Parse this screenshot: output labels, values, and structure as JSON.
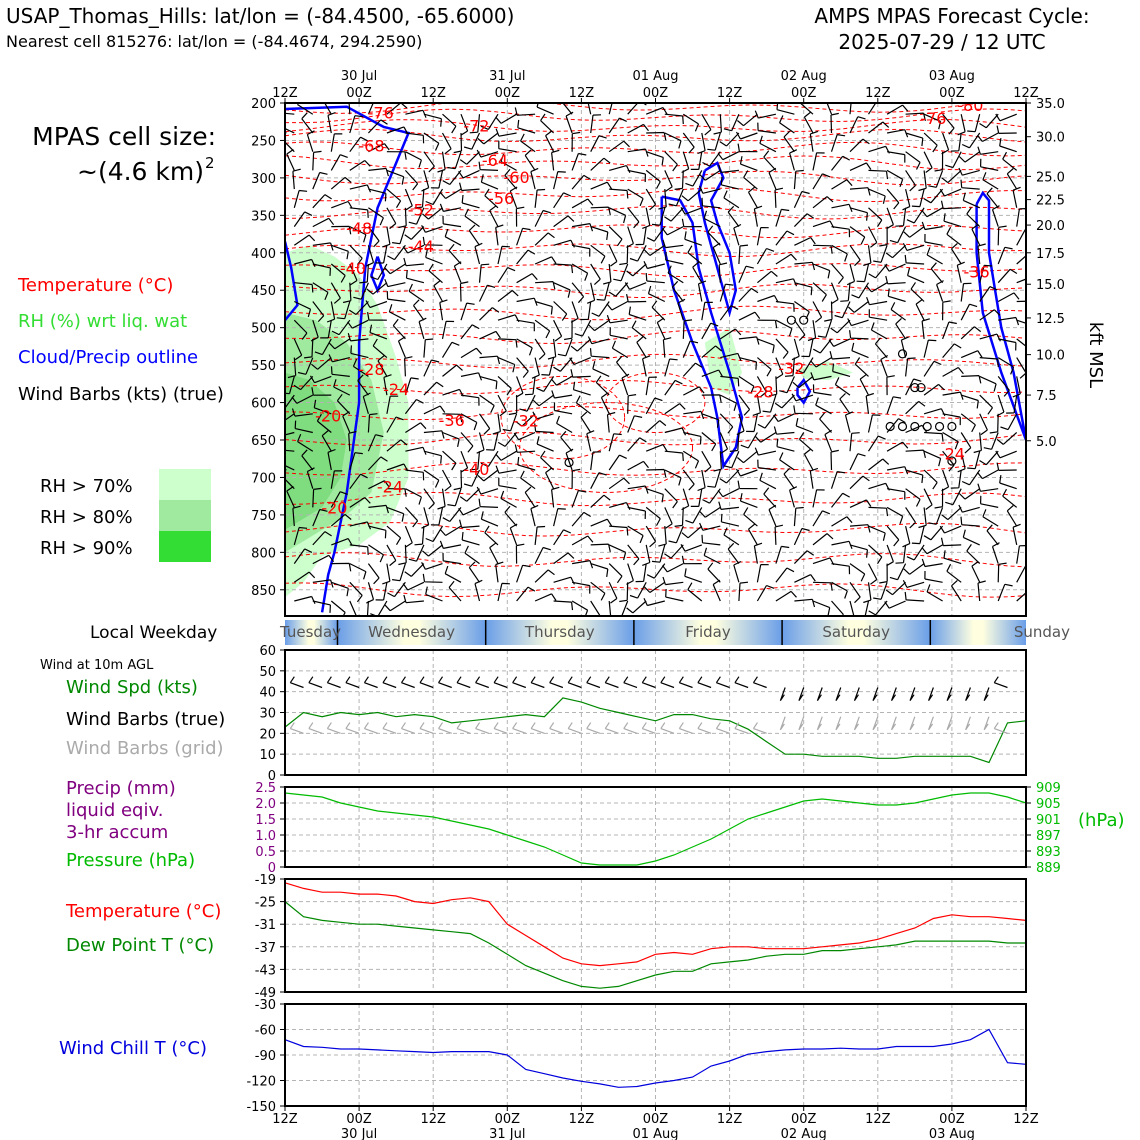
{
  "header": {
    "station": "USAP_Thomas_Hills: lat/lon = (-84.4500, -65.6000)",
    "nearest": "Nearest cell 815276: lat/lon = (-84.4674, 294.2590)",
    "forecast_line1": "AMPS MPAS Forecast Cycle:",
    "forecast_line2": "2025-07-29 / 12 UTC"
  },
  "left_panel": {
    "cell_size_label": "MPAS cell size:",
    "cell_size_value": "~(4.6 km)",
    "cell_size_exp": "2",
    "legend_temperature": "Temperature (°C)",
    "legend_rh": "RH (%) wrt liq. wat",
    "legend_cloud": "Cloud/Precip outline",
    "legend_wind": "Wind Barbs (kts) (true)",
    "rh_levels": [
      {
        "label": "RH > 70%",
        "color": "#ccffcc"
      },
      {
        "label": "RH > 80%",
        "color": "#a0eaa0"
      },
      {
        "label": "RH > 90%",
        "color": "#33dd33"
      }
    ],
    "local_weekday": "Local Weekday",
    "wind10m": "Wind at 10m AGL",
    "wind_spd": "Wind Spd (kts)",
    "wind_barbs_true": "Wind Barbs (true)",
    "wind_barbs_grid": "Wind Barbs (grid)",
    "precip1": "Precip (mm)",
    "precip2": "liquid eqiv.",
    "precip3": "3-hr accum",
    "pressure": "Pressure (hPa)",
    "temperature": "Temperature (°C)",
    "dewpoint": "Dew Point T (°C)",
    "windchill": "Wind Chill T (°C)"
  },
  "colors": {
    "temperature": "#ff0000",
    "rh": "#22cc22",
    "cloud": "#0000ff",
    "wind_speed": "#008800",
    "grid_barb": "#aaaaaa",
    "precip": "#800080",
    "pressure": "#00bb00",
    "dewpoint": "#008800",
    "windchill": "#0000dd"
  },
  "chart_data": [
    {
      "type": "heatmap",
      "name": "cross-section",
      "x_top_labels": [
        {
          "time": "12Z",
          "date": ""
        },
        {
          "time": "00Z",
          "date": "30 Jul"
        },
        {
          "time": "12Z",
          "date": ""
        },
        {
          "time": "00Z",
          "date": "31 Jul"
        },
        {
          "time": "12Z",
          "date": ""
        },
        {
          "time": "00Z",
          "date": "01 Aug"
        },
        {
          "time": "12Z",
          "date": ""
        },
        {
          "time": "00Z",
          "date": "02 Aug"
        },
        {
          "time": "12Z",
          "date": ""
        },
        {
          "time": "00Z",
          "date": "03 Aug"
        },
        {
          "time": "12Z",
          "date": ""
        }
      ],
      "x_range_hours": [
        0,
        120
      ],
      "y_left_ticks": [
        "200",
        "250",
        "300",
        "350",
        "400",
        "450",
        "500",
        "550",
        "600",
        "650",
        "700",
        "750",
        "800",
        "850"
      ],
      "y_left_range_hPa": [
        200,
        885
      ],
      "y_right_ticks": [
        {
          "label": "35.0",
          "hPa": 200
        },
        {
          "label": "30.0",
          "hPa": 245
        },
        {
          "label": "25.0",
          "hPa": 298
        },
        {
          "label": "22.5",
          "hPa": 329
        },
        {
          "label": "20.0",
          "hPa": 363
        },
        {
          "label": "17.5",
          "hPa": 400
        },
        {
          "label": "15.0",
          "hPa": 442
        },
        {
          "label": "12.5",
          "hPa": 487
        },
        {
          "label": "10.0",
          "hPa": 536
        },
        {
          "label": "7.5",
          "hPa": 590
        },
        {
          "label": "5.0",
          "hPa": 651
        }
      ],
      "y_right_label": "kft MSL",
      "temperature_contours": [
        -80,
        -76,
        -72,
        -68,
        -64,
        -60,
        -56,
        -52,
        -48,
        -44,
        -40,
        -36,
        -32,
        -28,
        -24,
        -20,
        -40,
        -36,
        -32,
        -28,
        -24,
        -36,
        -32,
        -24,
        -76,
        -20
      ],
      "contour_labels": [
        {
          "text": "-76",
          "h": 15.5,
          "p": 213
        },
        {
          "text": "-68",
          "h": 14,
          "p": 257
        },
        {
          "text": "-72",
          "h": 31,
          "p": 230
        },
        {
          "text": "-64",
          "h": 34,
          "p": 276
        },
        {
          "text": "-60",
          "h": 37.5,
          "p": 299
        },
        {
          "text": "-56",
          "h": 35,
          "p": 327
        },
        {
          "text": "-52",
          "h": 22,
          "p": 342
        },
        {
          "text": "-48",
          "h": 12,
          "p": 367
        },
        {
          "text": "-44",
          "h": 22,
          "p": 391
        },
        {
          "text": "-40",
          "h": 11,
          "p": 420
        },
        {
          "text": "-80",
          "h": 111,
          "p": 203
        },
        {
          "text": "-76",
          "h": 105,
          "p": 220
        },
        {
          "text": "-36",
          "h": 112,
          "p": 425
        },
        {
          "text": "-32",
          "h": 82,
          "p": 554
        },
        {
          "text": "-28",
          "h": 14,
          "p": 555
        },
        {
          "text": "-28",
          "h": 77,
          "p": 585
        },
        {
          "text": "-24",
          "h": 18,
          "p": 582
        },
        {
          "text": "-36",
          "h": 27,
          "p": 623
        },
        {
          "text": "-32",
          "h": 39,
          "p": 624
        },
        {
          "text": "-40",
          "h": 31,
          "p": 689
        },
        {
          "text": "-24",
          "h": 17,
          "p": 712
        },
        {
          "text": "-24",
          "h": 108,
          "p": 668
        },
        {
          "text": "-20",
          "h": 7,
          "p": 617
        },
        {
          "text": "-20",
          "h": 8,
          "p": 740
        }
      ],
      "rh_regions": "RH > 70/80/90% moist layer below ~450 hPa during first 24 h",
      "weekdays": [
        "Tuesday",
        "Wednesday",
        "Thursday",
        "Friday",
        "Saturday",
        "Sunday"
      ]
    },
    {
      "type": "line",
      "name": "wind-10m",
      "ylim": [
        0,
        60
      ],
      "yticks": [
        "0",
        "10",
        "20",
        "30",
        "40",
        "50",
        "60"
      ],
      "x_hours": [
        0,
        3,
        6,
        9,
        12,
        15,
        18,
        21,
        24,
        27,
        30,
        33,
        36,
        39,
        42,
        45,
        48,
        51,
        54,
        57,
        60,
        63,
        66,
        69,
        72,
        75,
        78,
        81,
        84,
        87,
        90,
        93,
        96,
        99,
        102,
        105,
        108,
        111,
        114,
        117,
        120
      ],
      "wind_speed_kts": [
        23,
        30,
        28,
        30,
        29,
        30,
        28,
        29,
        28,
        25,
        26,
        27,
        28,
        29,
        28,
        37,
        35,
        32,
        30,
        28,
        26,
        29,
        29,
        27,
        26,
        22,
        16,
        10,
        10,
        9,
        9,
        9,
        8,
        8,
        9,
        9,
        9,
        9,
        6,
        25,
        26
      ]
    },
    {
      "type": "line",
      "name": "precip-pressure",
      "ylim_precip": [
        0,
        2.5
      ],
      "yticks_precip": [
        "0",
        "0.5",
        "1.0",
        "1.5",
        "2.0",
        "2.5"
      ],
      "ylim_pressure": [
        889,
        909
      ],
      "yticks_pressure": [
        "909",
        "905",
        "901",
        "897",
        "893",
        "889"
      ],
      "right_label": "(hPa)",
      "x_hours": [
        0,
        3,
        6,
        9,
        12,
        15,
        18,
        21,
        24,
        27,
        30,
        33,
        36,
        39,
        42,
        45,
        48,
        51,
        54,
        57,
        60,
        63,
        66,
        69,
        72,
        75,
        78,
        81,
        84,
        87,
        90,
        93,
        96,
        99,
        102,
        105,
        108,
        111,
        114,
        117,
        120
      ],
      "pressure_hPa": [
        907.5,
        907,
        906.5,
        905,
        904,
        903,
        902.5,
        902,
        901.5,
        900.5,
        899.5,
        898.5,
        897,
        895.5,
        894,
        892,
        890,
        889.5,
        889.5,
        889.5,
        890.5,
        892,
        894,
        896,
        898.5,
        901,
        902.5,
        904,
        905.5,
        906,
        905.5,
        905,
        904.5,
        904.5,
        905,
        906,
        907,
        907.5,
        907.5,
        906.5,
        905
      ]
    },
    {
      "type": "line",
      "name": "temperature-dewpoint",
      "ylim": [
        -49,
        -19
      ],
      "yticks": [
        "-19",
        "-25",
        "-31",
        "-37",
        "-43",
        "-49"
      ],
      "x_hours": [
        0,
        3,
        6,
        9,
        12,
        15,
        18,
        21,
        24,
        27,
        30,
        33,
        36,
        39,
        42,
        45,
        48,
        51,
        54,
        57,
        60,
        63,
        66,
        69,
        72,
        75,
        78,
        81,
        84,
        87,
        90,
        93,
        96,
        99,
        102,
        105,
        108,
        111,
        114,
        117,
        120
      ],
      "temperature_C": [
        -20,
        -21.5,
        -22.5,
        -22.5,
        -23,
        -23,
        -23.5,
        -25,
        -25.5,
        -24.5,
        -24,
        -25,
        -31,
        -34,
        -37,
        -40,
        -41.5,
        -42,
        -41.5,
        -41,
        -39,
        -38.5,
        -39,
        -37.5,
        -37,
        -37,
        -37.5,
        -37.5,
        -37.5,
        -37,
        -36.5,
        -36,
        -35,
        -33.5,
        -32,
        -29.5,
        -28.5,
        -29,
        -29,
        -29.5,
        -30
      ],
      "dewpoint_C": [
        -25,
        -29,
        -30,
        -30.5,
        -31,
        -31,
        -31.5,
        -32,
        -32.5,
        -33,
        -33.5,
        -36,
        -39,
        -42,
        -44,
        -46,
        -47.5,
        -48,
        -47.5,
        -46,
        -44.5,
        -43.5,
        -43.5,
        -41.5,
        -41,
        -40.5,
        -39.5,
        -39,
        -39,
        -38,
        -38,
        -37.5,
        -37,
        -36.5,
        -35.5,
        -35.5,
        -35.5,
        -35.5,
        -35.5,
        -36,
        -36
      ]
    },
    {
      "type": "line",
      "name": "wind-chill",
      "ylim": [
        -150,
        -30
      ],
      "yticks": [
        "-30",
        "-60",
        "-90",
        "-120",
        "-150"
      ],
      "x_hours": [
        0,
        3,
        6,
        9,
        12,
        15,
        18,
        21,
        24,
        27,
        30,
        33,
        36,
        39,
        42,
        45,
        48,
        51,
        54,
        57,
        60,
        63,
        66,
        69,
        72,
        75,
        78,
        81,
        84,
        87,
        90,
        93,
        96,
        99,
        102,
        105,
        108,
        111,
        114,
        117,
        120
      ],
      "windchill_C": [
        -72,
        -80,
        -81,
        -83,
        -83,
        -84,
        -85,
        -86,
        -87,
        -86,
        -86,
        -86,
        -90,
        -107,
        -112,
        -117,
        -121,
        -124,
        -128,
        -127,
        -123,
        -120,
        -116,
        -103,
        -97,
        -89,
        -86,
        -84,
        -83,
        -83,
        -82,
        -83,
        -83,
        -80,
        -80,
        -80,
        -77,
        -72,
        -60,
        -99,
        -101
      ],
      "x_bottom_labels": [
        {
          "time": "12Z",
          "date": ""
        },
        {
          "time": "00Z",
          "date": "30 Jul"
        },
        {
          "time": "12Z",
          "date": ""
        },
        {
          "time": "00Z",
          "date": "31 Jul"
        },
        {
          "time": "12Z",
          "date": ""
        },
        {
          "time": "00Z",
          "date": "01 Aug"
        },
        {
          "time": "12Z",
          "date": ""
        },
        {
          "time": "00Z",
          "date": "02 Aug"
        },
        {
          "time": "12Z",
          "date": ""
        },
        {
          "time": "00Z",
          "date": "03 Aug"
        },
        {
          "time": "12Z",
          "date": ""
        }
      ]
    }
  ]
}
